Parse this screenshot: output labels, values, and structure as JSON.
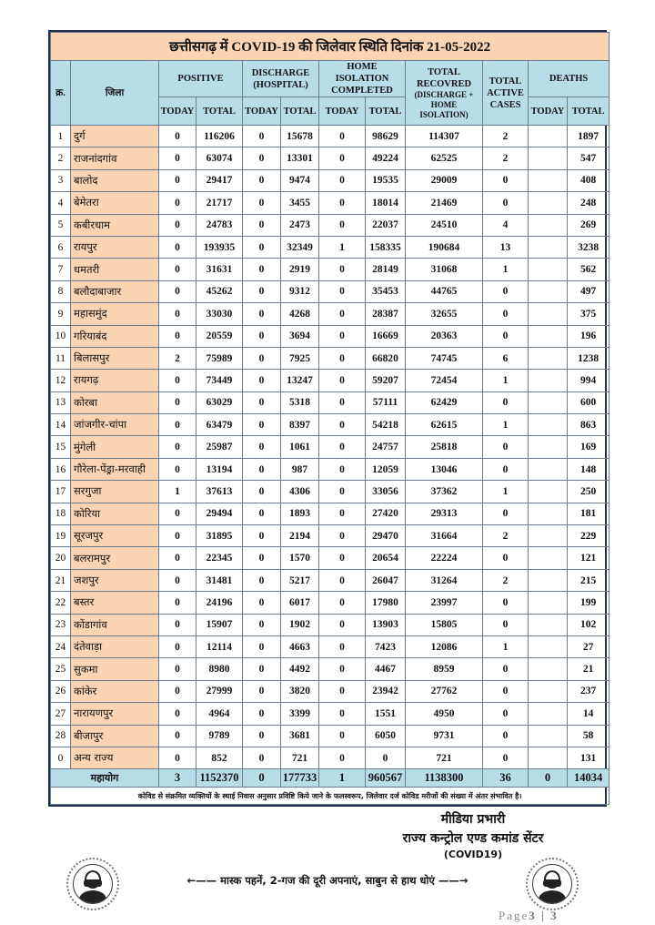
{
  "title": "छत्तीसगढ़ में COVID-19 की जिलेवार स्थिति दिनांक 21-05-2022",
  "headers": {
    "sr": "क्र.",
    "district": "जिला",
    "positive": "POSITIVE",
    "discharge": "DISCHARGE (HOSPITAL)",
    "home_isolation": "HOME ISOLATION COMPLETED",
    "total_recovered": "TOTAL RECOVRED",
    "total_recovered_sub": "(DISCHARGE + HOME ISOLATION)",
    "active": "TOTAL ACTIVE CASES",
    "deaths": "DEATHS",
    "today": "TODAY",
    "total": "TOTAL"
  },
  "rows": [
    {
      "sr": "1",
      "district": "दुर्ग",
      "pos_today": "0",
      "pos_total": "116206",
      "dis_today": "0",
      "dis_total": "15678",
      "hi_today": "0",
      "hi_total": "98629",
      "recovered": "114307",
      "active": "2",
      "death_today": "",
      "death_total": "1897"
    },
    {
      "sr": "2",
      "district": "राजनांदगांव",
      "pos_today": "0",
      "pos_total": "63074",
      "dis_today": "0",
      "dis_total": "13301",
      "hi_today": "0",
      "hi_total": "49224",
      "recovered": "62525",
      "active": "2",
      "death_today": "",
      "death_total": "547"
    },
    {
      "sr": "3",
      "district": "बालोद",
      "pos_today": "0",
      "pos_total": "29417",
      "dis_today": "0",
      "dis_total": "9474",
      "hi_today": "0",
      "hi_total": "19535",
      "recovered": "29009",
      "active": "0",
      "death_today": "",
      "death_total": "408"
    },
    {
      "sr": "4",
      "district": "बेमेतरा",
      "pos_today": "0",
      "pos_total": "21717",
      "dis_today": "0",
      "dis_total": "3455",
      "hi_today": "0",
      "hi_total": "18014",
      "recovered": "21469",
      "active": "0",
      "death_today": "",
      "death_total": "248"
    },
    {
      "sr": "5",
      "district": "कबीरधाम",
      "pos_today": "0",
      "pos_total": "24783",
      "dis_today": "0",
      "dis_total": "2473",
      "hi_today": "0",
      "hi_total": "22037",
      "recovered": "24510",
      "active": "4",
      "death_today": "",
      "death_total": "269"
    },
    {
      "sr": "6",
      "district": "रायपुर",
      "pos_today": "0",
      "pos_total": "193935",
      "dis_today": "0",
      "dis_total": "32349",
      "hi_today": "1",
      "hi_total": "158335",
      "recovered": "190684",
      "active": "13",
      "death_today": "",
      "death_total": "3238"
    },
    {
      "sr": "7",
      "district": "धमतरी",
      "pos_today": "0",
      "pos_total": "31631",
      "dis_today": "0",
      "dis_total": "2919",
      "hi_today": "0",
      "hi_total": "28149",
      "recovered": "31068",
      "active": "1",
      "death_today": "",
      "death_total": "562"
    },
    {
      "sr": "8",
      "district": "बलौदाबाजार",
      "pos_today": "0",
      "pos_total": "45262",
      "dis_today": "0",
      "dis_total": "9312",
      "hi_today": "0",
      "hi_total": "35453",
      "recovered": "44765",
      "active": "0",
      "death_today": "",
      "death_total": "497"
    },
    {
      "sr": "9",
      "district": "महासमुंद",
      "pos_today": "0",
      "pos_total": "33030",
      "dis_today": "0",
      "dis_total": "4268",
      "hi_today": "0",
      "hi_total": "28387",
      "recovered": "32655",
      "active": "0",
      "death_today": "",
      "death_total": "375"
    },
    {
      "sr": "10",
      "district": "गरियाबंद",
      "pos_today": "0",
      "pos_total": "20559",
      "dis_today": "0",
      "dis_total": "3694",
      "hi_today": "0",
      "hi_total": "16669",
      "recovered": "20363",
      "active": "0",
      "death_today": "",
      "death_total": "196"
    },
    {
      "sr": "11",
      "district": "बिलासपुर",
      "pos_today": "2",
      "pos_total": "75989",
      "dis_today": "0",
      "dis_total": "7925",
      "hi_today": "0",
      "hi_total": "66820",
      "recovered": "74745",
      "active": "6",
      "death_today": "",
      "death_total": "1238"
    },
    {
      "sr": "12",
      "district": "रायगढ़",
      "pos_today": "0",
      "pos_total": "73449",
      "dis_today": "0",
      "dis_total": "13247",
      "hi_today": "0",
      "hi_total": "59207",
      "recovered": "72454",
      "active": "1",
      "death_today": "",
      "death_total": "994"
    },
    {
      "sr": "13",
      "district": "कोरबा",
      "pos_today": "0",
      "pos_total": "63029",
      "dis_today": "0",
      "dis_total": "5318",
      "hi_today": "0",
      "hi_total": "57111",
      "recovered": "62429",
      "active": "0",
      "death_today": "",
      "death_total": "600"
    },
    {
      "sr": "14",
      "district": "जांजगीर-चांपा",
      "pos_today": "0",
      "pos_total": "63479",
      "dis_today": "0",
      "dis_total": "8397",
      "hi_today": "0",
      "hi_total": "54218",
      "recovered": "62615",
      "active": "1",
      "death_today": "",
      "death_total": "863"
    },
    {
      "sr": "15",
      "district": "मुंगेली",
      "pos_today": "0",
      "pos_total": "25987",
      "dis_today": "0",
      "dis_total": "1061",
      "hi_today": "0",
      "hi_total": "24757",
      "recovered": "25818",
      "active": "0",
      "death_today": "",
      "death_total": "169"
    },
    {
      "sr": "16",
      "district": "गौरेला-पेंड्रा-मरवाही",
      "pos_today": "0",
      "pos_total": "13194",
      "dis_today": "0",
      "dis_total": "987",
      "hi_today": "0",
      "hi_total": "12059",
      "recovered": "13046",
      "active": "0",
      "death_today": "",
      "death_total": "148"
    },
    {
      "sr": "17",
      "district": "सरगुजा",
      "pos_today": "1",
      "pos_total": "37613",
      "dis_today": "0",
      "dis_total": "4306",
      "hi_today": "0",
      "hi_total": "33056",
      "recovered": "37362",
      "active": "1",
      "death_today": "",
      "death_total": "250"
    },
    {
      "sr": "18",
      "district": "कोरिया",
      "pos_today": "0",
      "pos_total": "29494",
      "dis_today": "0",
      "dis_total": "1893",
      "hi_today": "0",
      "hi_total": "27420",
      "recovered": "29313",
      "active": "0",
      "death_today": "",
      "death_total": "181"
    },
    {
      "sr": "19",
      "district": "सूरजपुर",
      "pos_today": "0",
      "pos_total": "31895",
      "dis_today": "0",
      "dis_total": "2194",
      "hi_today": "0",
      "hi_total": "29470",
      "recovered": "31664",
      "active": "2",
      "death_today": "",
      "death_total": "229"
    },
    {
      "sr": "20",
      "district": "बलरामपुर",
      "pos_today": "0",
      "pos_total": "22345",
      "dis_today": "0",
      "dis_total": "1570",
      "hi_today": "0",
      "hi_total": "20654",
      "recovered": "22224",
      "active": "0",
      "death_today": "",
      "death_total": "121"
    },
    {
      "sr": "21",
      "district": "जशपुर",
      "pos_today": "0",
      "pos_total": "31481",
      "dis_today": "0",
      "dis_total": "5217",
      "hi_today": "0",
      "hi_total": "26047",
      "recovered": "31264",
      "active": "2",
      "death_today": "",
      "death_total": "215"
    },
    {
      "sr": "22",
      "district": "बस्तर",
      "pos_today": "0",
      "pos_total": "24196",
      "dis_today": "0",
      "dis_total": "6017",
      "hi_today": "0",
      "hi_total": "17980",
      "recovered": "23997",
      "active": "0",
      "death_today": "",
      "death_total": "199"
    },
    {
      "sr": "23",
      "district": "कोंडागांव",
      "pos_today": "0",
      "pos_total": "15907",
      "dis_today": "0",
      "dis_total": "1902",
      "hi_today": "0",
      "hi_total": "13903",
      "recovered": "15805",
      "active": "0",
      "death_today": "",
      "death_total": "102"
    },
    {
      "sr": "24",
      "district": "दंतेवाड़ा",
      "pos_today": "0",
      "pos_total": "12114",
      "dis_today": "0",
      "dis_total": "4663",
      "hi_today": "0",
      "hi_total": "7423",
      "recovered": "12086",
      "active": "1",
      "death_today": "",
      "death_total": "27"
    },
    {
      "sr": "25",
      "district": "सुकमा",
      "pos_today": "0",
      "pos_total": "8980",
      "dis_today": "0",
      "dis_total": "4492",
      "hi_today": "0",
      "hi_total": "4467",
      "recovered": "8959",
      "active": "0",
      "death_today": "",
      "death_total": "21"
    },
    {
      "sr": "26",
      "district": "कांकेर",
      "pos_today": "0",
      "pos_total": "27999",
      "dis_today": "0",
      "dis_total": "3820",
      "hi_today": "0",
      "hi_total": "23942",
      "recovered": "27762",
      "active": "0",
      "death_today": "",
      "death_total": "237"
    },
    {
      "sr": "27",
      "district": "नारायणपुर",
      "pos_today": "0",
      "pos_total": "4964",
      "dis_today": "0",
      "dis_total": "3399",
      "hi_today": "0",
      "hi_total": "1551",
      "recovered": "4950",
      "active": "0",
      "death_today": "",
      "death_total": "14"
    },
    {
      "sr": "28",
      "district": "बीजापुर",
      "pos_today": "0",
      "pos_total": "9789",
      "dis_today": "0",
      "dis_total": "3681",
      "hi_today": "0",
      "hi_total": "6050",
      "recovered": "9731",
      "active": "0",
      "death_today": "",
      "death_total": "58"
    },
    {
      "sr": "0",
      "district": "अन्य राज्य",
      "pos_today": "0",
      "pos_total": "852",
      "dis_today": "0",
      "dis_total": "721",
      "hi_today": "0",
      "hi_total": "0",
      "recovered": "721",
      "active": "0",
      "death_today": "",
      "death_total": "131"
    }
  ],
  "total": {
    "label": "महायोग",
    "pos_today": "3",
    "pos_total": "1152370",
    "dis_today": "0",
    "dis_total": "177733",
    "hi_today": "1",
    "hi_total": "960567",
    "recovered": "1138300",
    "active": "36",
    "death_today": "0",
    "death_total": "14034"
  },
  "note": "कोविड से संक्रमित व्यक्तियों के स्थाई निवास अनुसार प्रविष्टि किये जाने के फलस्वरूप, जिलेवार दर्ज कोविड मरीजों की संख्या में अंतर संभावित है।",
  "signature": {
    "line1": "मीडिया प्रभारी",
    "line2": "राज्य कन्ट्रोल एण्ड कमांड सेंटर",
    "line3": "(COVID19)"
  },
  "slogan": "←—— मास्क पहनें, 2-गज की दूरी अपनाएं, साबुन से हाथ धोएं ——→",
  "page": {
    "label": "Page",
    "number": "3 | 3"
  },
  "colors": {
    "title_bg": "#fbd4b4",
    "header_bg": "#b7dde8",
    "district_bg": "#fbd4b4",
    "border": "#1f3050"
  }
}
